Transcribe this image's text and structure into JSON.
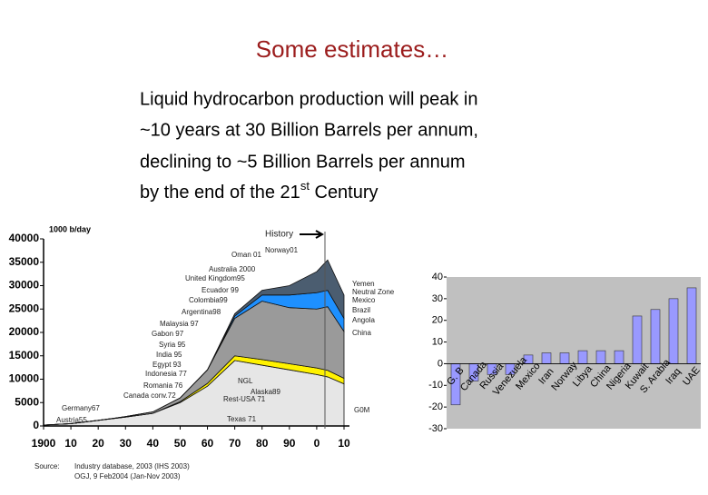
{
  "slide": {
    "title": "Some estimates…",
    "lines": [
      "Liquid hydrocarbon production will peak in",
      "~10 years at 30 Billion Barrels per annum,",
      "declining to ~5 Billion Barrels per annum",
      "by the end of the 21"
    ],
    "superscript": "st",
    "line_end": " Century"
  },
  "chart_data": [
    {
      "type": "area",
      "ylabel": "1000 b/day",
      "x": [
        1900,
        1910,
        1920,
        1930,
        1940,
        1950,
        1960,
        1970,
        1980,
        1990,
        2000,
        2004,
        2010
      ],
      "series": [
        {
          "color": "#e6e6e6",
          "values": [
            200,
            500,
            1200,
            1900,
            2700,
            5000,
            8500,
            14000,
            13000,
            12000,
            11000,
            10500,
            9000
          ]
        },
        {
          "color": "#fff200",
          "values": [
            0,
            0,
            0,
            0,
            0,
            200,
            600,
            1000,
            1200,
            1300,
            1400,
            1400,
            1200
          ]
        },
        {
          "color": "#9a9a9a",
          "values": [
            0,
            0,
            0,
            100,
            300,
            800,
            2900,
            8000,
            12500,
            12000,
            12600,
            13600,
            10000
          ]
        },
        {
          "color": "#1e90ff",
          "values": [
            0,
            0,
            0,
            0,
            0,
            0,
            0,
            500,
            1300,
            2700,
            3500,
            3500,
            2800
          ]
        },
        {
          "color": "#4b5d70",
          "values": [
            0,
            0,
            0,
            0,
            0,
            0,
            0,
            500,
            1000,
            2000,
            4500,
            6500,
            5000
          ]
        }
      ],
      "xlim": [
        1900,
        2010
      ],
      "ylim": [
        0,
        40000
      ],
      "xticks": [
        1900,
        {
          "value": 1910,
          "label": "10"
        },
        {
          "value": 1920,
          "label": "20"
        },
        {
          "value": 1930,
          "label": "30"
        },
        {
          "value": 1940,
          "label": "40"
        },
        {
          "value": 1950,
          "label": "50"
        },
        {
          "value": 1960,
          "label": "60"
        },
        {
          "value": 1970,
          "label": "70"
        },
        {
          "value": 1980,
          "label": "80"
        },
        {
          "value": 1990,
          "label": "90"
        },
        {
          "value": 2000,
          "label": "0"
        },
        {
          "value": 2010,
          "label": "10"
        }
      ],
      "yticks": [
        0,
        5000,
        10000,
        15000,
        20000,
        25000,
        30000,
        35000,
        40000
      ],
      "annotations": [
        "History",
        "Oman 01",
        "Norway01",
        "Australia 2000",
        "United Kingdom95",
        "Ecuador 99",
        "Colombia99",
        "Argentina98",
        "Malaysia 97",
        "Gabon 97",
        "Syria 95",
        "India 95",
        "Egypt 93",
        "Indonesia 77",
        "Romania 76",
        "Canada conv.72",
        "Germany67",
        "Austria55",
        "Texas 71",
        "Rest-USA 71",
        "NGL",
        "Alaska89",
        "Yemen",
        "Neutral Zone",
        "Mexico",
        "Brazil",
        "Angola",
        "China",
        "G0M"
      ],
      "source": [
        "Source:",
        "Industry database, 2003 (IHS 2003)",
        "OGJ, 9 Feb2004 (Jan-Nov 2003)"
      ]
    },
    {
      "type": "bar",
      "categories": [
        "G. B",
        "Canada",
        "Russia",
        "Venezuela",
        "Mexico",
        "Iran",
        "Norway",
        "Libya",
        "China",
        "Nigeria",
        "Kuwait",
        "S. Arabia",
        "Iraq",
        "UAE"
      ],
      "values": [
        -19,
        -8,
        -5,
        -5,
        4,
        5,
        5,
        6,
        6,
        6,
        22,
        25,
        30,
        35
      ],
      "color": "#9999ff",
      "background": "#c0c0c0",
      "ylim": [
        -30,
        40
      ],
      "yticks": [
        -30,
        -20,
        -10,
        0,
        10,
        20,
        30,
        40
      ]
    }
  ]
}
